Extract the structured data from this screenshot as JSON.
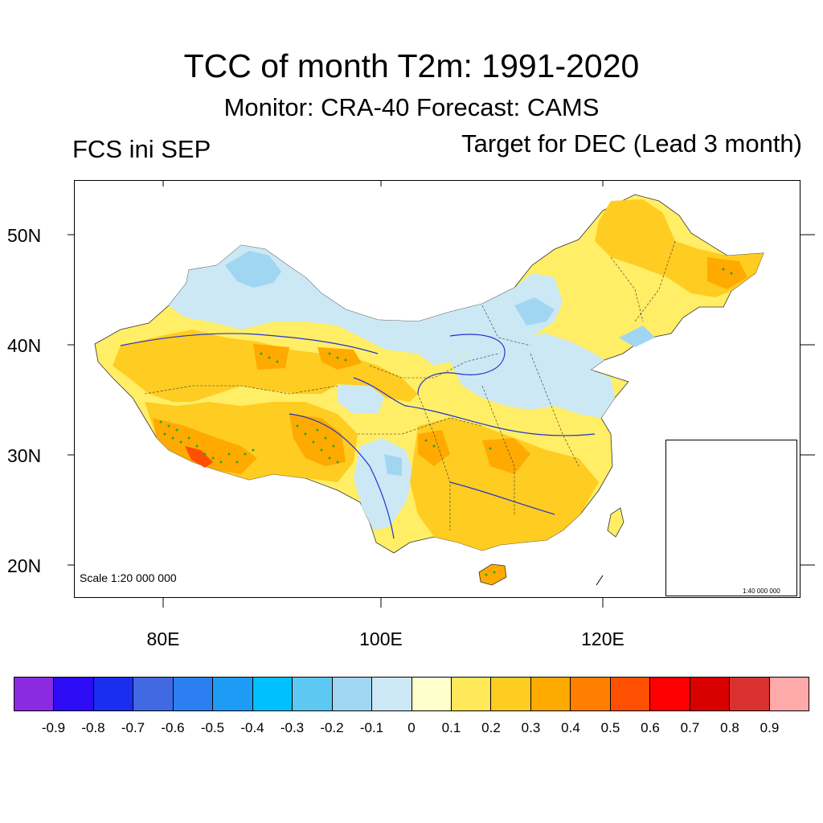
{
  "title": "TCC of month T2m: 1991-2020",
  "subtitle": "Monitor: CRA-40   Forecast: CAMS",
  "left_subtitle": "FCS ini SEP",
  "right_subtitle": "Target for DEC (Lead 3 month)",
  "map": {
    "lat_labels": [
      "50N",
      "40N",
      "30N",
      "20N"
    ],
    "lon_labels": [
      "80E",
      "100E",
      "120E"
    ],
    "scale_main": "Scale 1:20 000 000",
    "scale_inset": "1:40 000 000"
  },
  "colorbar": {
    "colors": [
      "#8a2be2",
      "#2e0bf5",
      "#1a2ef0",
      "#4169e1",
      "#2b7ff0",
      "#1e9cf5",
      "#00bfff",
      "#5dc8f2",
      "#a0d6f2",
      "#cce8f5",
      "#ffffcc",
      "#ffe85a",
      "#ffcc22",
      "#ffaa00",
      "#ff8000",
      "#ff4f00",
      "#ff0000",
      "#d90000",
      "#d93030",
      "#ffaaaa"
    ],
    "labels": [
      "-0.9",
      "-0.8",
      "-0.7",
      "-0.6",
      "-0.5",
      "-0.4",
      "-0.3",
      "-0.2",
      "-0.1",
      "0",
      "0.1",
      "0.2",
      "0.3",
      "0.4",
      "0.5",
      "0.6",
      "0.7",
      "0.8",
      "0.9"
    ]
  }
}
